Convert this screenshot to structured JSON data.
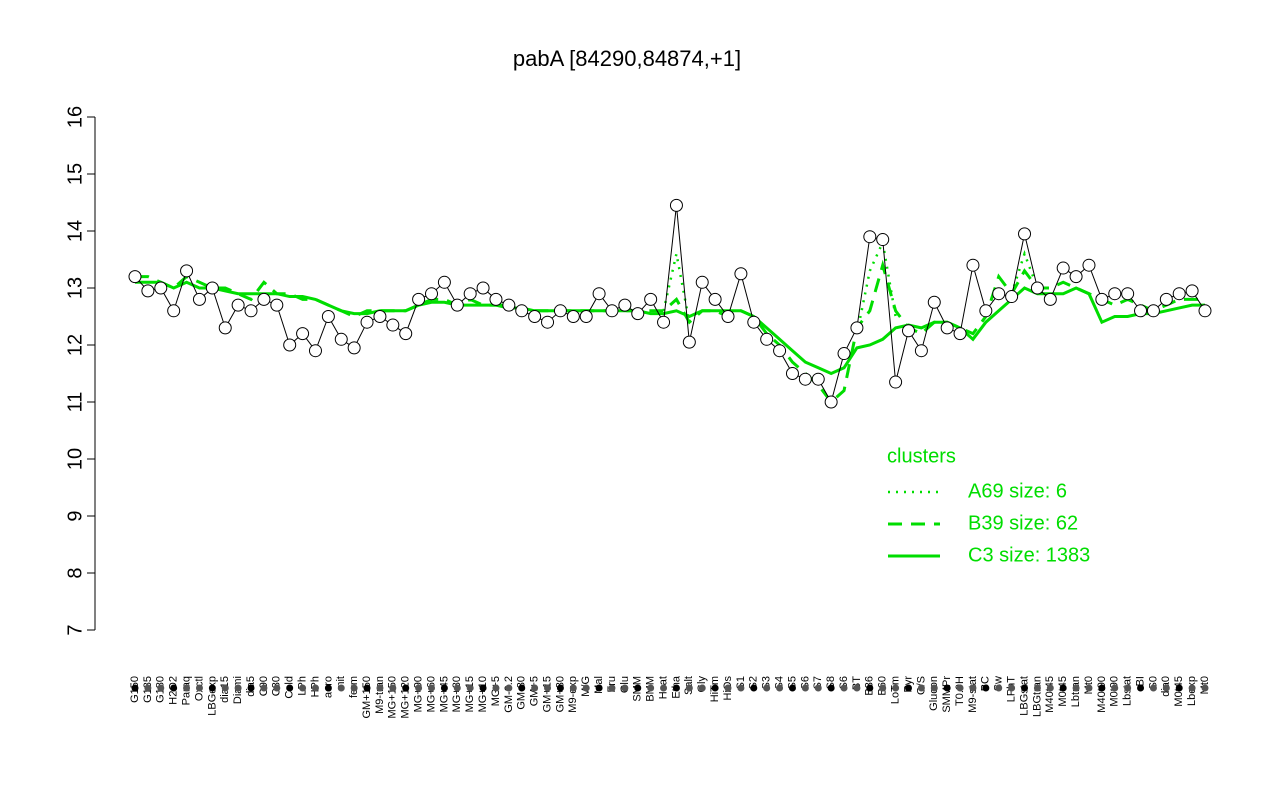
{
  "chart_data": {
    "type": "line",
    "title": "pabA [84290,84874,+1]",
    "categories": [
      "G150",
      "G135",
      "G180",
      "H2O2",
      "Paraq",
      "Oxctl",
      "LBGexp",
      "dia15",
      "Diami",
      "dia5",
      "C90",
      "C30",
      "Cold",
      "LPh",
      "HPh",
      "aero",
      "nit",
      "ferm",
      "GM+150",
      "M9-tran",
      "MG+150",
      "MG+120",
      "MG+90",
      "MG+60",
      "MG+45",
      "MG+30",
      "MG+15",
      "MG+10",
      "MG+5",
      "GM-0.2",
      "GM-30",
      "GM+5",
      "GM+15",
      "GM+30",
      "M9-exp",
      "M/G",
      "Mal",
      "Fru",
      "Glu",
      "SMM",
      "BMM",
      "Heat",
      "Etha",
      "Salt",
      "Gly",
      "HiTm",
      "HiOs",
      "S1",
      "S2",
      "S3",
      "S4",
      "S5",
      "S6",
      "S7",
      "S8",
      "S6",
      "BT",
      "B36",
      "B60",
      "LoTm",
      "Pyr",
      "G/S",
      "Glucon",
      "SMMPr",
      "T0.0H",
      "M9-stat",
      "BC",
      "Sw",
      "LPhT",
      "LBGstat",
      "LBGtran",
      "M40t45",
      "M0t45",
      "Lbtran",
      "Mt0",
      "M40t90",
      "M0t90",
      "Lbstat",
      "BI",
      "S0",
      "dia0",
      "M0t45",
      "Lbexp",
      "Mt0"
    ],
    "series": [
      {
        "name": "pabA",
        "color": "#000000",
        "values": [
          13.2,
          12.95,
          13.0,
          12.6,
          13.3,
          12.8,
          13.0,
          12.3,
          12.7,
          12.6,
          12.8,
          12.7,
          12.0,
          12.2,
          11.9,
          12.5,
          12.1,
          11.95,
          12.4,
          12.5,
          12.35,
          12.2,
          12.8,
          12.9,
          13.1,
          12.7,
          12.9,
          13.0,
          12.8,
          12.7,
          12.6,
          12.5,
          12.4,
          12.6,
          12.5,
          12.5,
          12.9,
          12.6,
          12.7,
          12.55,
          12.8,
          12.4,
          14.45,
          12.05,
          13.1,
          12.8,
          12.5,
          13.25,
          12.4,
          12.1,
          11.9,
          11.5,
          11.4,
          11.4,
          11.0,
          11.85,
          12.3,
          13.9,
          13.85,
          11.35,
          12.25,
          11.9,
          12.75,
          12.3,
          12.2,
          13.4,
          12.6,
          12.9,
          12.85,
          13.95,
          13.0,
          12.8,
          13.35,
          13.2,
          13.4,
          12.8,
          12.9,
          12.9,
          12.6,
          12.6,
          12.8,
          12.9,
          12.95,
          12.6
        ]
      },
      {
        "name": "A69 size: 6",
        "color": "#00dd00",
        "dash": "dotted",
        "values": [
          null,
          null,
          null,
          null,
          null,
          null,
          null,
          null,
          null,
          null,
          null,
          null,
          null,
          null,
          null,
          null,
          null,
          null,
          null,
          null,
          null,
          null,
          null,
          null,
          null,
          null,
          null,
          null,
          null,
          null,
          null,
          null,
          null,
          null,
          null,
          null,
          null,
          null,
          null,
          null,
          null,
          12.6,
          13.6,
          12.4,
          null,
          null,
          null,
          null,
          null,
          null,
          null,
          null,
          null,
          null,
          null,
          null,
          12.2,
          13.3,
          13.8,
          12.5,
          null,
          null,
          null,
          null,
          null,
          null,
          null,
          null,
          12.9,
          13.6,
          13.0,
          null,
          null,
          null,
          null,
          null,
          null,
          null,
          null,
          null,
          null,
          null,
          null,
          null
        ]
      },
      {
        "name": "B39 size: 62",
        "color": "#00dd00",
        "dash": "dashed",
        "values": [
          13.2,
          13.2,
          13.1,
          13.0,
          13.2,
          13.1,
          13.0,
          13.0,
          12.9,
          12.8,
          13.1,
          12.9,
          12.9,
          12.8,
          12.8,
          12.7,
          12.6,
          12.5,
          12.6,
          12.6,
          12.6,
          12.6,
          12.7,
          12.8,
          12.8,
          12.7,
          12.8,
          12.7,
          12.7,
          12.7,
          12.6,
          12.6,
          12.6,
          12.6,
          12.6,
          12.6,
          12.6,
          12.6,
          12.6,
          12.6,
          12.6,
          12.6,
          12.8,
          12.4,
          12.6,
          12.6,
          12.5,
          12.6,
          12.5,
          12.2,
          12.0,
          11.7,
          11.5,
          11.3,
          11.0,
          11.2,
          12.3,
          12.6,
          13.4,
          12.6,
          12.3,
          12.2,
          12.4,
          12.4,
          12.3,
          12.2,
          12.5,
          13.2,
          12.9,
          13.3,
          13.0,
          13.0,
          13.1,
          13.0,
          12.9,
          12.8,
          12.7,
          12.8,
          12.7,
          12.6,
          12.7,
          12.8,
          12.8,
          12.8
        ]
      },
      {
        "name": "C3 size: 1383",
        "color": "#00dd00",
        "dash": "solid",
        "values": [
          13.1,
          13.1,
          13.1,
          13.0,
          13.1,
          13.0,
          13.0,
          12.95,
          12.9,
          12.9,
          12.9,
          12.9,
          12.85,
          12.85,
          12.8,
          12.7,
          12.6,
          12.55,
          12.55,
          12.6,
          12.6,
          12.6,
          12.7,
          12.75,
          12.75,
          12.7,
          12.7,
          12.7,
          12.7,
          12.65,
          12.65,
          12.6,
          12.6,
          12.6,
          12.6,
          12.6,
          12.6,
          12.6,
          12.6,
          12.6,
          12.55,
          12.55,
          12.6,
          12.5,
          12.6,
          12.6,
          12.6,
          12.6,
          12.5,
          12.3,
          12.1,
          11.9,
          11.7,
          11.6,
          11.5,
          11.6,
          11.95,
          12.0,
          12.1,
          12.3,
          12.35,
          12.3,
          12.4,
          12.4,
          12.3,
          12.1,
          12.4,
          12.6,
          12.8,
          13.0,
          12.9,
          12.9,
          12.9,
          13.0,
          12.9,
          12.4,
          12.5,
          12.5,
          12.55,
          12.55,
          12.6,
          12.65,
          12.7,
          12.7
        ]
      }
    ],
    "legend_title": "clusters",
    "ylim": [
      7,
      16
    ],
    "yticks": [
      7,
      8,
      9,
      10,
      11,
      12,
      13,
      14,
      15,
      16
    ]
  }
}
